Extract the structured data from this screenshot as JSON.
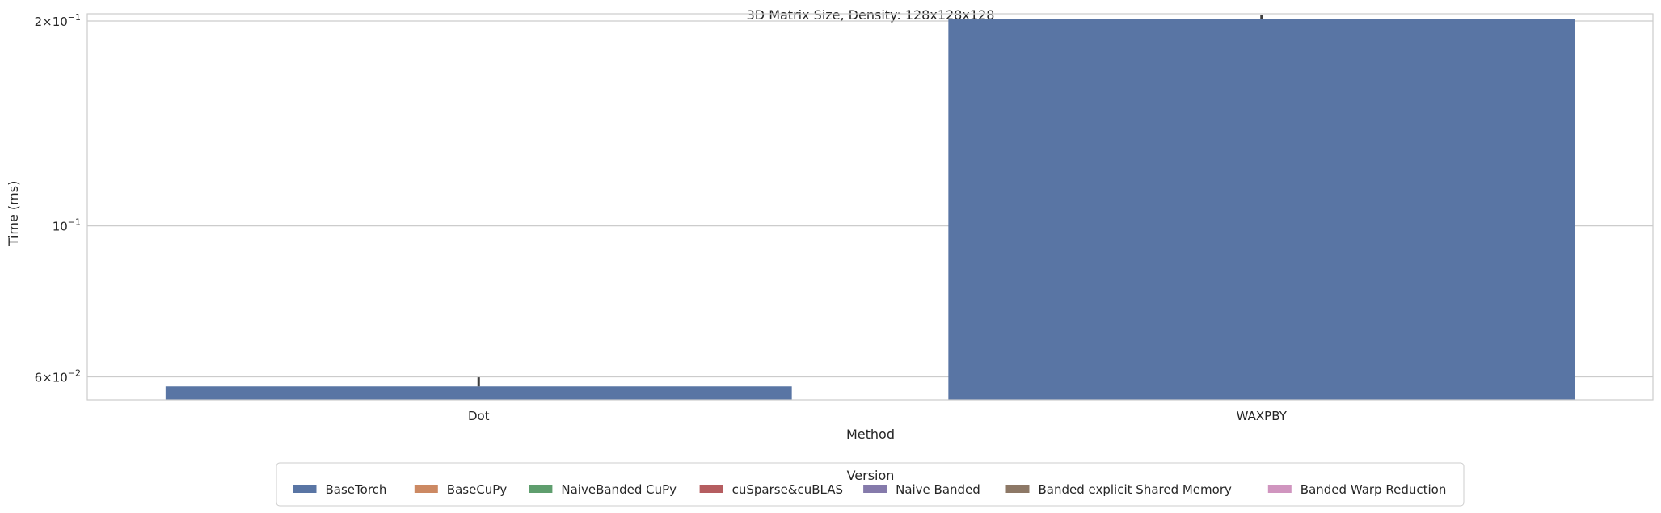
{
  "chart_data": {
    "type": "bar",
    "title": "3D Matrix Size, Density: 128x128x128",
    "xlabel": "Method",
    "ylabel": "Time (ms)",
    "yscale": "log",
    "ylim": [
      0.0555,
      0.205
    ],
    "categories": [
      "Dot",
      "WAXPBY"
    ],
    "yticks": [
      {
        "value": 0.2,
        "base": "2×10",
        "exp": "−1"
      },
      {
        "value": 0.1,
        "base": "10",
        "exp": "−1"
      },
      {
        "value": 0.06,
        "base": "6×10",
        "exp": "−2"
      }
    ],
    "grid": "horizontal",
    "series": [
      {
        "name": "BaseTorch",
        "color": "#5975a4",
        "values": [
          0.0581,
          0.2012
        ],
        "err_high": [
          0.0599,
          0.2041
        ],
        "err_low": [
          0.0581,
          0.2012
        ]
      }
    ],
    "legend": {
      "title": "Version",
      "placement": "bottom-center",
      "entries": [
        {
          "label": "BaseTorch",
          "color": "#5975a4"
        },
        {
          "label": "BaseCuPy",
          "color": "#cc8963"
        },
        {
          "label": "NaiveBanded CuPy",
          "color": "#5f9e6e"
        },
        {
          "label": "cuSparse&cuBLAS",
          "color": "#b55d60"
        },
        {
          "label": "Naive Banded",
          "color": "#857aab"
        },
        {
          "label": "Banded explicit Shared Memory",
          "color": "#8d7866"
        },
        {
          "label": "Banded Warp Reduction",
          "color": "#d095bf"
        }
      ]
    }
  }
}
